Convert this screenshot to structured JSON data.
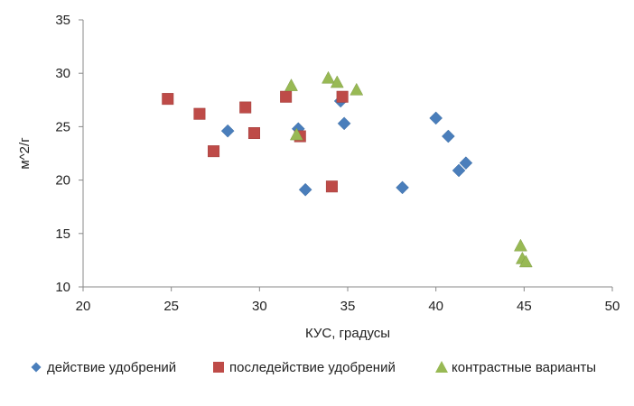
{
  "chart_data": {
    "type": "scatter",
    "title": "",
    "xlabel": "КУС, градусы",
    "ylabel": "м^2/г",
    "xlim": [
      20,
      50
    ],
    "ylim": [
      10,
      35
    ],
    "xticks": [
      20,
      25,
      30,
      35,
      40,
      45,
      50
    ],
    "yticks": [
      10,
      15,
      20,
      25,
      30,
      35
    ],
    "grid": false,
    "legend_position": "bottom",
    "series": [
      {
        "name": "действие удобрений",
        "marker": "diamond",
        "color": "#4A7EBB",
        "points": [
          {
            "x": 28.2,
            "y": 24.6
          },
          {
            "x": 32.2,
            "y": 24.8
          },
          {
            "x": 32.6,
            "y": 19.1
          },
          {
            "x": 34.6,
            "y": 27.4
          },
          {
            "x": 34.8,
            "y": 25.3
          },
          {
            "x": 38.1,
            "y": 19.3
          },
          {
            "x": 40.0,
            "y": 25.8
          },
          {
            "x": 40.7,
            "y": 24.1
          },
          {
            "x": 41.3,
            "y": 20.9
          },
          {
            "x": 41.7,
            "y": 21.6
          }
        ]
      },
      {
        "name": "последействие удобрений",
        "marker": "square",
        "color": "#BE4B48",
        "points": [
          {
            "x": 24.8,
            "y": 27.6
          },
          {
            "x": 26.6,
            "y": 26.2
          },
          {
            "x": 27.4,
            "y": 22.7
          },
          {
            "x": 29.2,
            "y": 26.8
          },
          {
            "x": 29.7,
            "y": 24.4
          },
          {
            "x": 31.5,
            "y": 27.8
          },
          {
            "x": 32.3,
            "y": 24.1
          },
          {
            "x": 34.1,
            "y": 19.4
          },
          {
            "x": 34.7,
            "y": 27.8
          }
        ]
      },
      {
        "name": "контрастные варианты",
        "marker": "triangle",
        "color": "#98B954",
        "points": [
          {
            "x": 31.8,
            "y": 28.8
          },
          {
            "x": 32.1,
            "y": 24.2
          },
          {
            "x": 33.9,
            "y": 29.5
          },
          {
            "x": 34.4,
            "y": 29.1
          },
          {
            "x": 35.5,
            "y": 28.4
          },
          {
            "x": 44.8,
            "y": 13.8
          },
          {
            "x": 44.9,
            "y": 12.6
          },
          {
            "x": 45.1,
            "y": 12.3
          }
        ]
      }
    ]
  }
}
